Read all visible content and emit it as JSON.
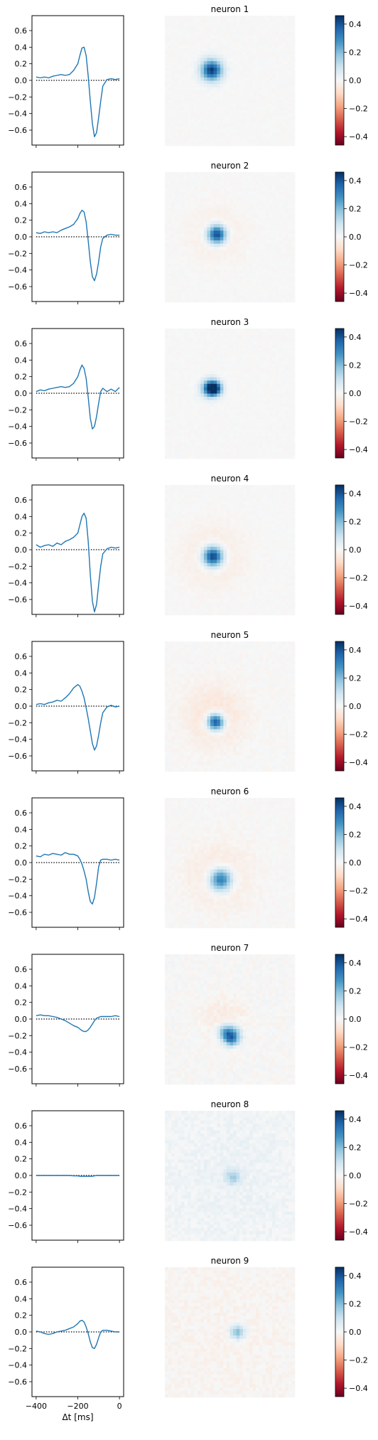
{
  "figure": {
    "xlabel": "Δt [ms]",
    "xticks": [
      -400,
      -200,
      0
    ],
    "yticks": [
      -0.6,
      -0.4,
      -0.2,
      0.0,
      0.2,
      0.4,
      0.6
    ],
    "ylim": [
      -0.78,
      0.78
    ],
    "xlim": [
      -420,
      20
    ],
    "colorbar_ticks": [
      -0.4,
      -0.2,
      0.0,
      0.2,
      0.4
    ],
    "colorbar_range": [
      -0.46,
      0.46
    ],
    "colorbar_colors": [
      "#67001f",
      "#b2182b",
      "#d6604d",
      "#f4a582",
      "#fddbc7",
      "#f7f7f7",
      "#d1e5f0",
      "#92c5de",
      "#4393c3",
      "#2166ac",
      "#053061"
    ],
    "trace_color": "#1f77b4"
  },
  "chart_data": [
    {
      "type": "line",
      "title": "neuron 1",
      "x": [
        -400,
        -380,
        -360,
        -340,
        -320,
        -300,
        -280,
        -260,
        -240,
        -220,
        -200,
        -190,
        -180,
        -170,
        -160,
        -150,
        -140,
        -130,
        -120,
        -110,
        -100,
        -90,
        -80,
        -60,
        -40,
        -20,
        0
      ],
      "y": [
        0.04,
        0.03,
        0.04,
        0.03,
        0.05,
        0.06,
        0.07,
        0.06,
        0.07,
        0.12,
        0.2,
        0.3,
        0.39,
        0.4,
        0.3,
        0.05,
        -0.25,
        -0.52,
        -0.68,
        -0.63,
        -0.45,
        -0.25,
        -0.07,
        0.01,
        0.02,
        0.01,
        0.02
      ],
      "rf": {
        "spots": [
          {
            "cx": 0.36,
            "cy": 0.42,
            "r": 0.055,
            "v": 0.44
          }
        ],
        "noise": 0.008
      }
    },
    {
      "type": "line",
      "title": "neuron 2",
      "x": [
        -400,
        -380,
        -360,
        -340,
        -320,
        -300,
        -280,
        -260,
        -240,
        -220,
        -200,
        -190,
        -180,
        -170,
        -160,
        -150,
        -140,
        -130,
        -120,
        -110,
        -100,
        -90,
        -80,
        -60,
        -40,
        -20,
        0
      ],
      "y": [
        0.05,
        0.04,
        0.06,
        0.05,
        0.06,
        0.05,
        0.08,
        0.1,
        0.12,
        0.15,
        0.22,
        0.28,
        0.32,
        0.3,
        0.18,
        -0.05,
        -0.3,
        -0.48,
        -0.53,
        -0.45,
        -0.3,
        -0.12,
        -0.02,
        0.02,
        0.03,
        0.02,
        0.02
      ],
      "rf": {
        "spots": [
          {
            "cx": 0.4,
            "cy": 0.48,
            "r": 0.05,
            "v": 0.45
          },
          {
            "cx": 0.4,
            "cy": 0.48,
            "r": 0.14,
            "v": -0.04
          }
        ],
        "noise": 0.008
      }
    },
    {
      "type": "line",
      "title": "neuron 3",
      "x": [
        -400,
        -380,
        -360,
        -340,
        -320,
        -300,
        -280,
        -260,
        -240,
        -220,
        -200,
        -190,
        -180,
        -170,
        -160,
        -150,
        -140,
        -130,
        -120,
        -110,
        -100,
        -90,
        -80,
        -60,
        -40,
        -20,
        0
      ],
      "y": [
        0.02,
        0.04,
        0.03,
        0.05,
        0.06,
        0.07,
        0.08,
        0.07,
        0.08,
        0.12,
        0.2,
        0.28,
        0.34,
        0.3,
        0.18,
        -0.05,
        -0.3,
        -0.43,
        -0.4,
        -0.28,
        -0.12,
        0.02,
        0.06,
        0.02,
        0.05,
        0.02,
        0.07
      ],
      "rf": {
        "spots": [
          {
            "cx": 0.35,
            "cy": 0.46,
            "r": 0.045,
            "v": 0.42
          },
          {
            "cx": 0.39,
            "cy": 0.46,
            "r": 0.035,
            "v": 0.3
          }
        ],
        "noise": 0.008
      }
    },
    {
      "type": "line",
      "title": "neuron 4",
      "x": [
        -400,
        -380,
        -360,
        -340,
        -320,
        -300,
        -280,
        -260,
        -240,
        -220,
        -200,
        -190,
        -180,
        -170,
        -160,
        -150,
        -140,
        -130,
        -120,
        -110,
        -100,
        -90,
        -80,
        -60,
        -40,
        -20,
        0
      ],
      "y": [
        0.06,
        0.03,
        0.05,
        0.06,
        0.04,
        0.08,
        0.06,
        0.1,
        0.12,
        0.15,
        0.2,
        0.3,
        0.4,
        0.44,
        0.38,
        0.1,
        -0.3,
        -0.62,
        -0.75,
        -0.66,
        -0.42,
        -0.2,
        -0.05,
        0.01,
        0.03,
        0.02,
        0.03
      ],
      "rf": {
        "spots": [
          {
            "cx": 0.37,
            "cy": 0.55,
            "r": 0.055,
            "v": 0.46
          },
          {
            "cx": 0.37,
            "cy": 0.55,
            "r": 0.16,
            "v": -0.05
          }
        ],
        "noise": 0.008
      }
    },
    {
      "type": "line",
      "title": "neuron 5",
      "x": [
        -400,
        -380,
        -360,
        -340,
        -320,
        -300,
        -280,
        -260,
        -240,
        -220,
        -200,
        -190,
        -180,
        -170,
        -160,
        -150,
        -140,
        -130,
        -120,
        -110,
        -100,
        -90,
        -80,
        -60,
        -40,
        -20,
        0
      ],
      "y": [
        0.02,
        0.03,
        0.02,
        0.04,
        0.05,
        0.07,
        0.06,
        0.1,
        0.15,
        0.22,
        0.26,
        0.24,
        0.18,
        0.1,
        -0.02,
        -0.15,
        -0.3,
        -0.45,
        -0.53,
        -0.48,
        -0.35,
        -0.2,
        -0.08,
        -0.01,
        0.01,
        -0.01,
        0.0
      ],
      "rf": {
        "spots": [
          {
            "cx": 0.39,
            "cy": 0.62,
            "r": 0.045,
            "v": 0.44
          },
          {
            "cx": 0.38,
            "cy": 0.57,
            "r": 0.17,
            "v": -0.06
          }
        ],
        "noise": 0.012
      }
    },
    {
      "type": "line",
      "title": "neuron 6",
      "x": [
        -400,
        -380,
        -360,
        -340,
        -320,
        -300,
        -280,
        -260,
        -240,
        -220,
        -200,
        -190,
        -180,
        -170,
        -160,
        -150,
        -140,
        -130,
        -120,
        -110,
        -100,
        -90,
        -80,
        -60,
        -40,
        -20,
        0
      ],
      "y": [
        0.08,
        0.07,
        0.1,
        0.09,
        0.11,
        0.1,
        0.09,
        0.12,
        0.1,
        0.1,
        0.08,
        0.04,
        -0.02,
        -0.1,
        -0.2,
        -0.35,
        -0.47,
        -0.5,
        -0.42,
        -0.25,
        -0.05,
        0.03,
        0.04,
        0.04,
        0.03,
        0.04,
        0.03
      ],
      "rf": {
        "spots": [
          {
            "cx": 0.43,
            "cy": 0.63,
            "r": 0.06,
            "v": 0.36
          },
          {
            "cx": 0.42,
            "cy": 0.6,
            "r": 0.18,
            "v": -0.05
          }
        ],
        "noise": 0.012
      }
    },
    {
      "type": "line",
      "title": "neuron 7",
      "x": [
        -400,
        -380,
        -360,
        -340,
        -320,
        -300,
        -280,
        -260,
        -240,
        -220,
        -200,
        -190,
        -180,
        -170,
        -160,
        -150,
        -140,
        -130,
        -120,
        -110,
        -100,
        -90,
        -80,
        -60,
        -40,
        -20,
        0
      ],
      "y": [
        0.04,
        0.05,
        0.04,
        0.04,
        0.03,
        0.02,
        0.0,
        -0.02,
        -0.05,
        -0.08,
        -0.1,
        -0.12,
        -0.14,
        -0.15,
        -0.15,
        -0.13,
        -0.1,
        -0.06,
        -0.02,
        0.01,
        0.02,
        0.03,
        0.03,
        0.03,
        0.03,
        0.04,
        0.03
      ],
      "rf": {
        "spots": [
          {
            "cx": 0.47,
            "cy": 0.6,
            "r": 0.045,
            "v": 0.24
          },
          {
            "cx": 0.53,
            "cy": 0.62,
            "r": 0.045,
            "v": 0.2
          },
          {
            "cx": 0.51,
            "cy": 0.66,
            "r": 0.035,
            "v": 0.18
          },
          {
            "cx": 0.45,
            "cy": 0.5,
            "r": 0.12,
            "v": -0.04
          }
        ],
        "noise": 0.018
      }
    },
    {
      "type": "line",
      "title": "neuron 8",
      "x": [
        -400,
        -380,
        -360,
        -340,
        -320,
        -300,
        -280,
        -260,
        -240,
        -220,
        -200,
        -190,
        -180,
        -170,
        -160,
        -150,
        -140,
        -130,
        -120,
        -110,
        -100,
        -90,
        -80,
        -60,
        -40,
        -20,
        0
      ],
      "y": [
        0.0,
        0.0,
        0.0,
        0.0,
        0.0,
        0.0,
        0.0,
        0.0,
        0.0,
        -0.005,
        -0.005,
        -0.01,
        -0.01,
        -0.01,
        -0.01,
        -0.01,
        -0.01,
        -0.01,
        -0.005,
        0.0,
        0.0,
        0.0,
        0.0,
        0.0,
        0.0,
        0.0,
        0.0
      ],
      "rf": {
        "spots": [
          {
            "cx": 0.52,
            "cy": 0.51,
            "r": 0.04,
            "v": 0.14
          },
          {
            "cx": 0.5,
            "cy": 0.5,
            "r": 0.5,
            "v": 0.025
          }
        ],
        "noise": 0.02
      }
    },
    {
      "type": "line",
      "title": "neuron 9",
      "x": [
        -400,
        -380,
        -360,
        -340,
        -320,
        -300,
        -280,
        -260,
        -240,
        -220,
        -200,
        -190,
        -180,
        -170,
        -160,
        -150,
        -140,
        -130,
        -120,
        -110,
        -100,
        -90,
        -80,
        -60,
        -40,
        -20,
        0
      ],
      "y": [
        0.01,
        0.0,
        -0.02,
        -0.03,
        -0.02,
        0.0,
        0.01,
        0.02,
        0.04,
        0.06,
        0.1,
        0.13,
        0.14,
        0.12,
        0.06,
        -0.02,
        -0.12,
        -0.19,
        -0.2,
        -0.15,
        -0.07,
        0.0,
        0.02,
        0.02,
        0.01,
        0.0,
        0.0
      ],
      "rf": {
        "spots": [
          {
            "cx": 0.56,
            "cy": 0.5,
            "r": 0.04,
            "v": 0.2
          },
          {
            "cx": 0.5,
            "cy": 0.5,
            "r": 0.5,
            "v": -0.015
          }
        ],
        "noise": 0.02
      }
    }
  ]
}
